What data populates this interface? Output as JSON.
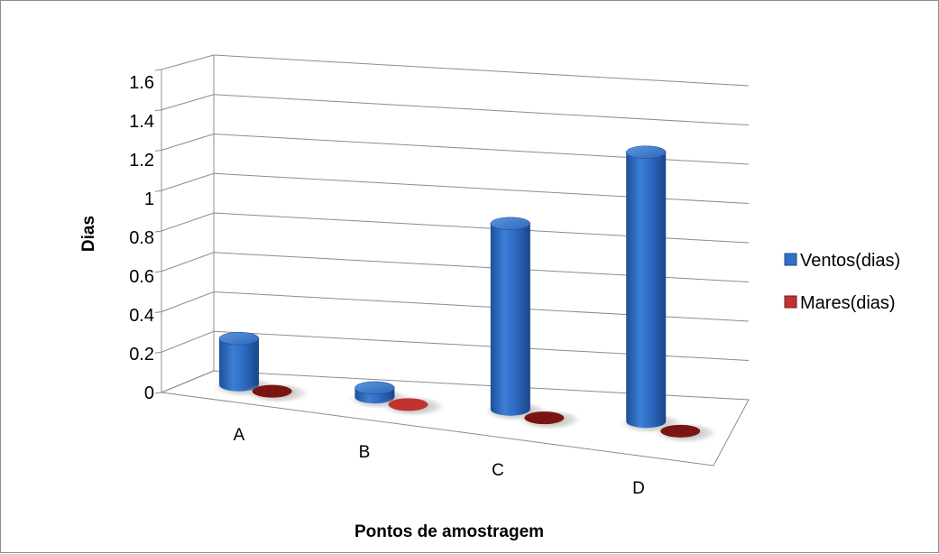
{
  "chart_data": {
    "type": "bar",
    "subtype": "3d-cylinder",
    "categories": [
      "A",
      "B",
      "C",
      "D"
    ],
    "series": [
      {
        "name": "Ventos(dias)",
        "values": [
          0.25,
          0.05,
          1.0,
          1.45
        ],
        "color": "#2f6fc6"
      },
      {
        "name": "Mares(dias)",
        "values": [
          0.0,
          0.0,
          0.0,
          0.0
        ],
        "color": "#c0332f"
      }
    ],
    "yticks": [
      "0",
      "0.2",
      "0.4",
      "0.6",
      "0.8",
      "1",
      "1.2",
      "1.4",
      "1.6"
    ],
    "ylim": [
      0,
      1.6
    ],
    "ylabel": "Dias",
    "xlabel": "Pontos de amostragem",
    "grid": true,
    "legend_position": "right"
  }
}
